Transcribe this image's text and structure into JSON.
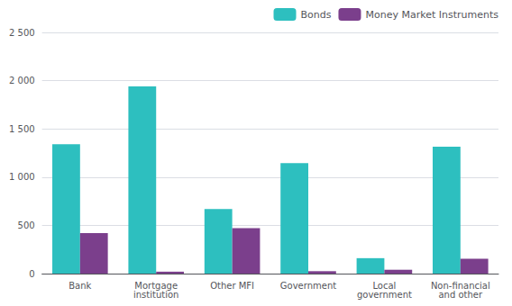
{
  "chart_data": {
    "type": "bar",
    "categories": [
      "Bank",
      "Mortgage\ninstitution",
      "Other MFI",
      "Government",
      "Local\ngovernment",
      "Non-financial\nand other"
    ],
    "series": [
      {
        "name": "Bonds",
        "color": "#2DBFBF",
        "values": [
          1340,
          1940,
          670,
          1145,
          160,
          1315
        ]
      },
      {
        "name": "Money Market Instruments",
        "color": "#7B3F8C",
        "values": [
          420,
          20,
          470,
          25,
          40,
          155
        ]
      }
    ],
    "ylim": [
      0,
      2500
    ],
    "yticks": [
      0,
      500,
      {
        "value": 1000,
        "label": "1 000"
      },
      {
        "value": 1500,
        "label": "1 500"
      },
      {
        "value": 2000,
        "label": "2 000"
      },
      {
        "value": 2500,
        "label": "2 500"
      }
    ],
    "grid": true,
    "legend": "upper right"
  }
}
